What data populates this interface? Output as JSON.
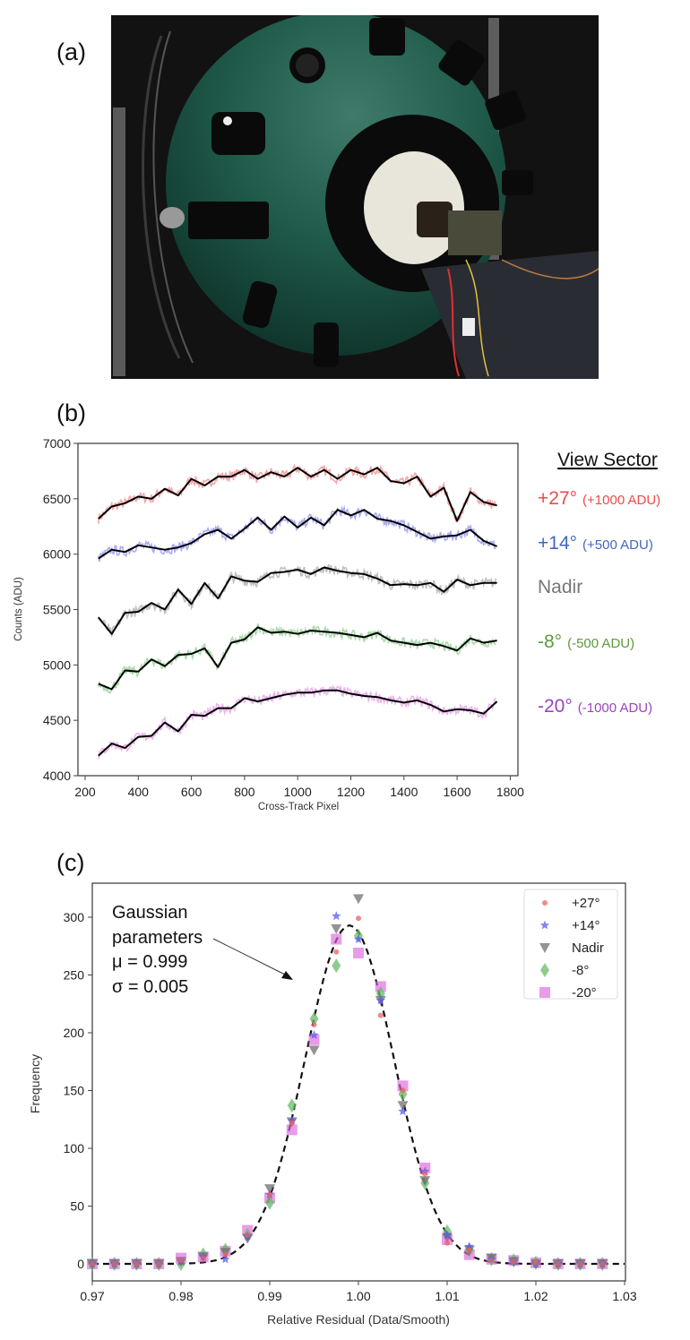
{
  "figure": {
    "panel_labels": {
      "a": "(a)",
      "b": "(b)",
      "c": "(c)"
    }
  },
  "chart_data": [
    {
      "type": "line",
      "panel": "b",
      "xlabel": "Cross-Track Pixel",
      "ylabel": "Counts (ADU)",
      "xlim": [
        175,
        1825
      ],
      "ylim": [
        4000,
        7000
      ],
      "xticks": [
        200,
        400,
        600,
        800,
        1000,
        1200,
        1400,
        1600,
        1800
      ],
      "yticks": [
        4000,
        4500,
        5000,
        5500,
        6000,
        6500,
        7000
      ],
      "legend_title": "View Sector",
      "x": [
        250,
        300,
        350,
        400,
        450,
        500,
        550,
        600,
        650,
        700,
        750,
        800,
        850,
        900,
        950,
        1000,
        1050,
        1100,
        1150,
        1200,
        1250,
        1300,
        1350,
        1400,
        1450,
        1500,
        1550,
        1600,
        1650,
        1700,
        1750
      ],
      "series": [
        {
          "name": "+27°",
          "offset": "(+1000 ADU)",
          "color": "#f08a8a",
          "text_color": "#ee4a4a",
          "values": [
            6320,
            6430,
            6460,
            6520,
            6500,
            6590,
            6530,
            6680,
            6620,
            6700,
            6700,
            6760,
            6680,
            6740,
            6700,
            6780,
            6700,
            6760,
            6680,
            6760,
            6720,
            6780,
            6660,
            6640,
            6700,
            6520,
            6600,
            6300,
            6560,
            6470,
            6440
          ]
        },
        {
          "name": "+14°",
          "offset": "(+500 ADU)",
          "color": "#8f8ff0",
          "text_color": "#4466bb",
          "values": [
            5960,
            6040,
            6020,
            6080,
            6060,
            6040,
            6060,
            6100,
            6180,
            6220,
            6140,
            6230,
            6330,
            6220,
            6340,
            6240,
            6330,
            6260,
            6400,
            6350,
            6400,
            6320,
            6300,
            6260,
            6200,
            6140,
            6160,
            6170,
            6220,
            6120,
            6070
          ]
        },
        {
          "name": "Nadir",
          "offset": "",
          "color": "#aaaaaa",
          "text_color": "#777777",
          "values": [
            5430,
            5280,
            5470,
            5480,
            5560,
            5500,
            5680,
            5550,
            5740,
            5600,
            5800,
            5760,
            5750,
            5830,
            5840,
            5860,
            5820,
            5880,
            5850,
            5830,
            5820,
            5780,
            5720,
            5730,
            5720,
            5740,
            5660,
            5770,
            5720,
            5740,
            5740
          ]
        },
        {
          "name": "-8°",
          "offset": "(-500 ADU)",
          "color": "#8fcf8f",
          "text_color": "#5a9a3a",
          "values": [
            4830,
            4780,
            4950,
            4940,
            5050,
            4990,
            5090,
            5100,
            5150,
            4980,
            5200,
            5230,
            5340,
            5290,
            5300,
            5280,
            5310,
            5300,
            5290,
            5270,
            5250,
            5290,
            5220,
            5200,
            5180,
            5200,
            5170,
            5130,
            5240,
            5200,
            5220
          ]
        },
        {
          "name": "-20°",
          "offset": "(-1000 ADU)",
          "color": "#e79ae7",
          "text_color": "#9944bb",
          "values": [
            4180,
            4290,
            4250,
            4350,
            4360,
            4480,
            4400,
            4550,
            4540,
            4610,
            4610,
            4700,
            4670,
            4700,
            4730,
            4750,
            4750,
            4770,
            4770,
            4740,
            4720,
            4710,
            4680,
            4660,
            4680,
            4640,
            4580,
            4600,
            4590,
            4560,
            4670
          ]
        }
      ]
    },
    {
      "type": "scatter",
      "panel": "c",
      "xlabel": "Relative Residual (Data/Smooth)",
      "ylabel": "Frequency",
      "xlim": [
        0.97,
        1.03
      ],
      "ylim": [
        -15,
        330
      ],
      "xticks": [
        "0.97",
        "0.98",
        "0.99",
        "1.00",
        "1.01",
        "1.02",
        "1.03"
      ],
      "yticks": [
        0,
        50,
        100,
        150,
        200,
        250,
        300
      ],
      "x": [
        0.97,
        0.9725,
        0.975,
        0.9775,
        0.98,
        0.9825,
        0.985,
        0.9875,
        0.99,
        0.9925,
        0.995,
        0.9975,
        1.0,
        1.0025,
        1.005,
        1.0075,
        1.01,
        1.0125,
        1.015,
        1.0175,
        1.02,
        1.0225,
        1.025,
        1.0275
      ],
      "series": [
        {
          "name": "+27°",
          "marker": "circle",
          "color": "#f06060",
          "values": [
            0,
            0,
            0,
            0,
            3,
            5,
            8,
            25,
            60,
            122,
            207,
            270,
            299,
            215,
            150,
            78,
            18,
            12,
            3,
            2,
            1,
            0,
            0,
            0
          ]
        },
        {
          "name": "+14°",
          "marker": "star",
          "color": "#5a5af0",
          "values": [
            0,
            0,
            0,
            0,
            2,
            6,
            4,
            24,
            60,
            124,
            198,
            301,
            281,
            228,
            132,
            80,
            25,
            15,
            4,
            2,
            0,
            0,
            0,
            0
          ]
        },
        {
          "name": "Nadir",
          "marker": "triangle-down",
          "color": "#707070",
          "values": [
            0,
            0,
            0,
            0,
            2,
            6,
            10,
            22,
            65,
            123,
            185,
            290,
            316,
            228,
            137,
            72,
            23,
            12,
            5,
            2,
            0,
            0,
            0,
            0
          ]
        },
        {
          "name": "-8°",
          "marker": "diamond",
          "color": "#66bb66",
          "values": [
            0,
            0,
            0,
            0,
            0,
            8,
            12,
            25,
            53,
            137,
            212,
            258,
            284,
            234,
            147,
            70,
            28,
            12,
            4,
            3,
            1,
            0,
            0,
            0
          ]
        },
        {
          "name": "-20°",
          "marker": "square",
          "color": "#dd66dd",
          "values": [
            0,
            0,
            0,
            0,
            5,
            6,
            11,
            29,
            57,
            116,
            194,
            281,
            269,
            240,
            154,
            83,
            21,
            8,
            4,
            3,
            1,
            0,
            0,
            0
          ]
        }
      ],
      "fit": {
        "type": "gaussian",
        "mu": 0.999,
        "sigma": 0.005,
        "amplitude": 293
      },
      "annotation": {
        "lines": [
          "Gaussian",
          "parameters",
          "μ = 0.999",
          "σ = 0.005"
        ]
      },
      "legend_position": "top-right"
    }
  ]
}
